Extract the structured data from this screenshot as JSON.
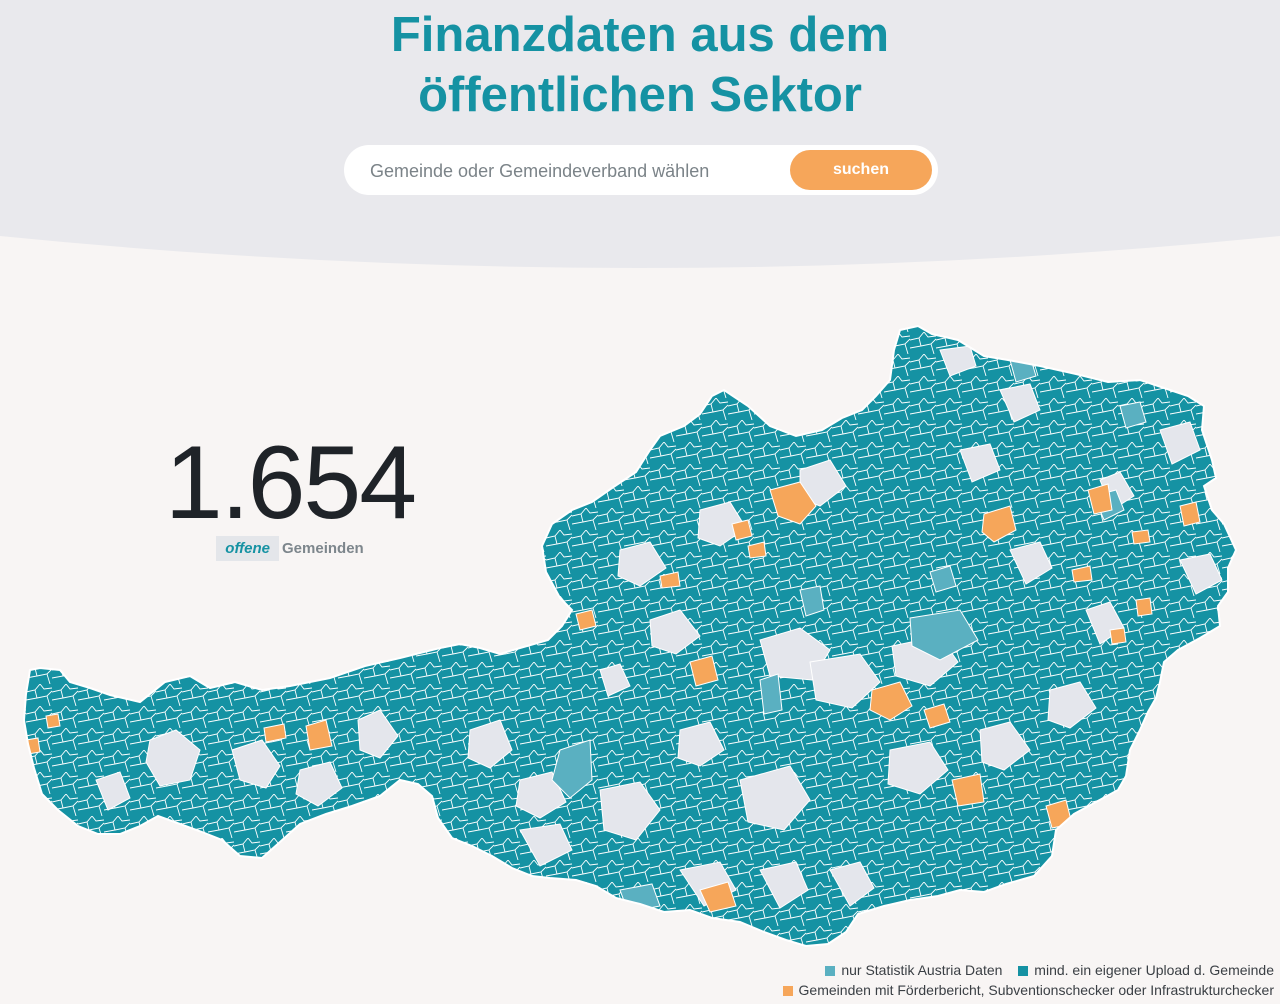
{
  "header": {
    "title_line1": "Finanzdaten aus dem",
    "title_line2": "öffentlichen Sektor"
  },
  "search": {
    "placeholder": "Gemeinde oder Gemeindeverband wählen",
    "value": "",
    "button_label": "suchen"
  },
  "counter": {
    "number": "1.654",
    "highlight": "offene",
    "label": "Gemeinden"
  },
  "map": {
    "colors": {
      "statistik": "#5ab0c1",
      "upload": "#1592a3",
      "foerder": "#f6a65a",
      "none": "#e4e6ec",
      "background": "#f8f5f4",
      "header_bg": "#e9e9ed",
      "title": "#1592a3"
    }
  },
  "legend": {
    "items": [
      {
        "label": "nur Statistik Austria Daten",
        "color": "#5ab0c1"
      },
      {
        "label": "mind. ein eigener Upload d. Gemeinde",
        "color": "#1592a3"
      },
      {
        "label": "Gemeinden mit Förderbericht, Subventionschecker oder Infrastrukturchecker",
        "color": "#f6a65a"
      }
    ]
  }
}
